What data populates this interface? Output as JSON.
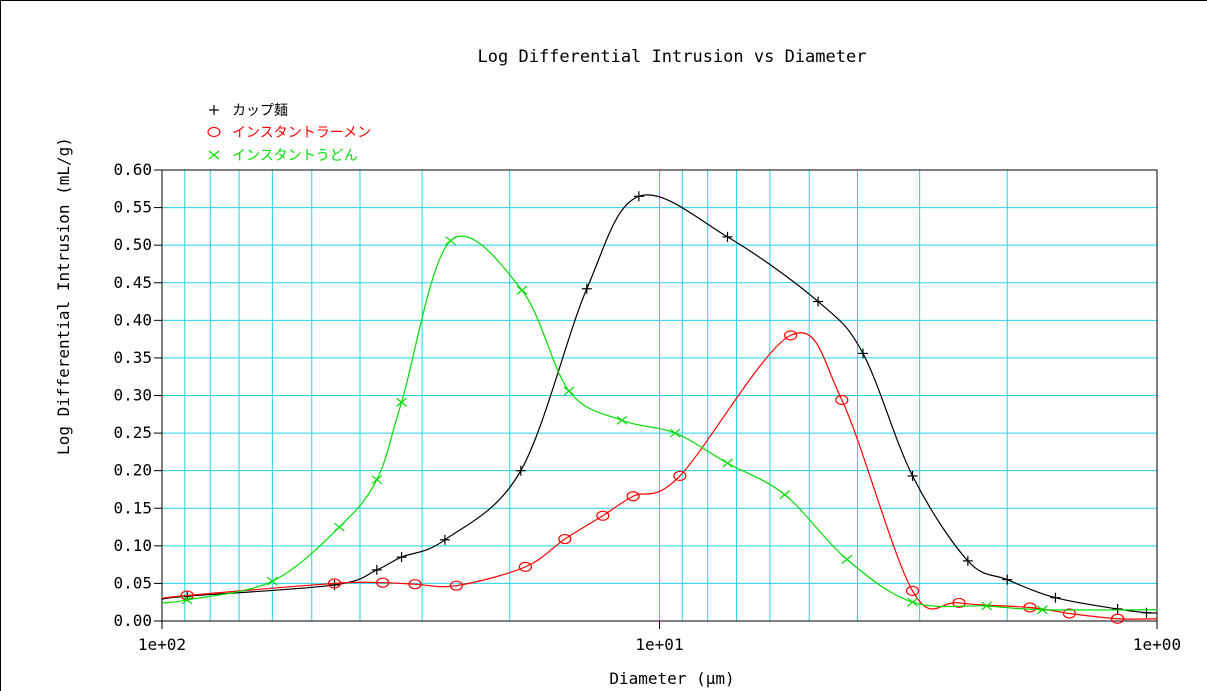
{
  "chart_data": {
    "type": "line",
    "title": "Log Differential Intrusion vs Diameter",
    "xlabel": "Diameter (µm)",
    "ylabel": "Log Differential Intrusion (mL/g)",
    "x_scale": "log",
    "x_reversed": true,
    "xlim": [
      100,
      1
    ],
    "ylim": [
      0,
      0.6
    ],
    "x_tick_labels": [
      "1e+02",
      "1e+01",
      "1e+00"
    ],
    "y_tick_labels": [
      "0.00",
      "0.05",
      "0.10",
      "0.15",
      "0.20",
      "0.25",
      "0.30",
      "0.35",
      "0.40",
      "0.45",
      "0.50",
      "0.55",
      "0.60"
    ],
    "grid": true,
    "legend_position": "top-left",
    "series": [
      {
        "name": "カップ麺",
        "color": "#000000",
        "marker": "+",
        "x": [
          89,
          45,
          37,
          33,
          27,
          19,
          14,
          11,
          7.3,
          4.8,
          3.9,
          3.1,
          2.4,
          2.0,
          1.6,
          1.2,
          1.05
        ],
        "y": [
          0.033,
          0.048,
          0.068,
          0.085,
          0.108,
          0.2,
          0.442,
          0.565,
          0.511,
          0.425,
          0.356,
          0.193,
          0.08,
          0.055,
          0.031,
          0.016,
          0.011
        ]
      },
      {
        "name": "インスタントラーメン",
        "color": "#ff0000",
        "marker": "o",
        "x": [
          89,
          45,
          36,
          31,
          25.6,
          18.6,
          15.5,
          13,
          11.3,
          9.1,
          5.45,
          4.3,
          3.1,
          2.5,
          1.8,
          1.5,
          1.2
        ],
        "y": [
          0.034,
          0.05,
          0.051,
          0.049,
          0.047,
          0.072,
          0.109,
          0.14,
          0.166,
          0.193,
          0.38,
          0.294,
          0.04,
          0.024,
          0.018,
          0.01,
          0.003
        ]
      },
      {
        "name": "インスタントうどん",
        "color": "#00dd00",
        "marker": "x",
        "x": [
          89,
          60,
          44,
          37,
          33,
          26.3,
          18.9,
          15.2,
          11.9,
          9.3,
          7.3,
          5.6,
          4.2,
          3.1,
          2.2,
          1.7
        ],
        "y": [
          0.028,
          0.053,
          0.125,
          0.188,
          0.291,
          0.506,
          0.44,
          0.306,
          0.267,
          0.25,
          0.21,
          0.168,
          0.082,
          0.025,
          0.02,
          0.015
        ]
      }
    ]
  }
}
